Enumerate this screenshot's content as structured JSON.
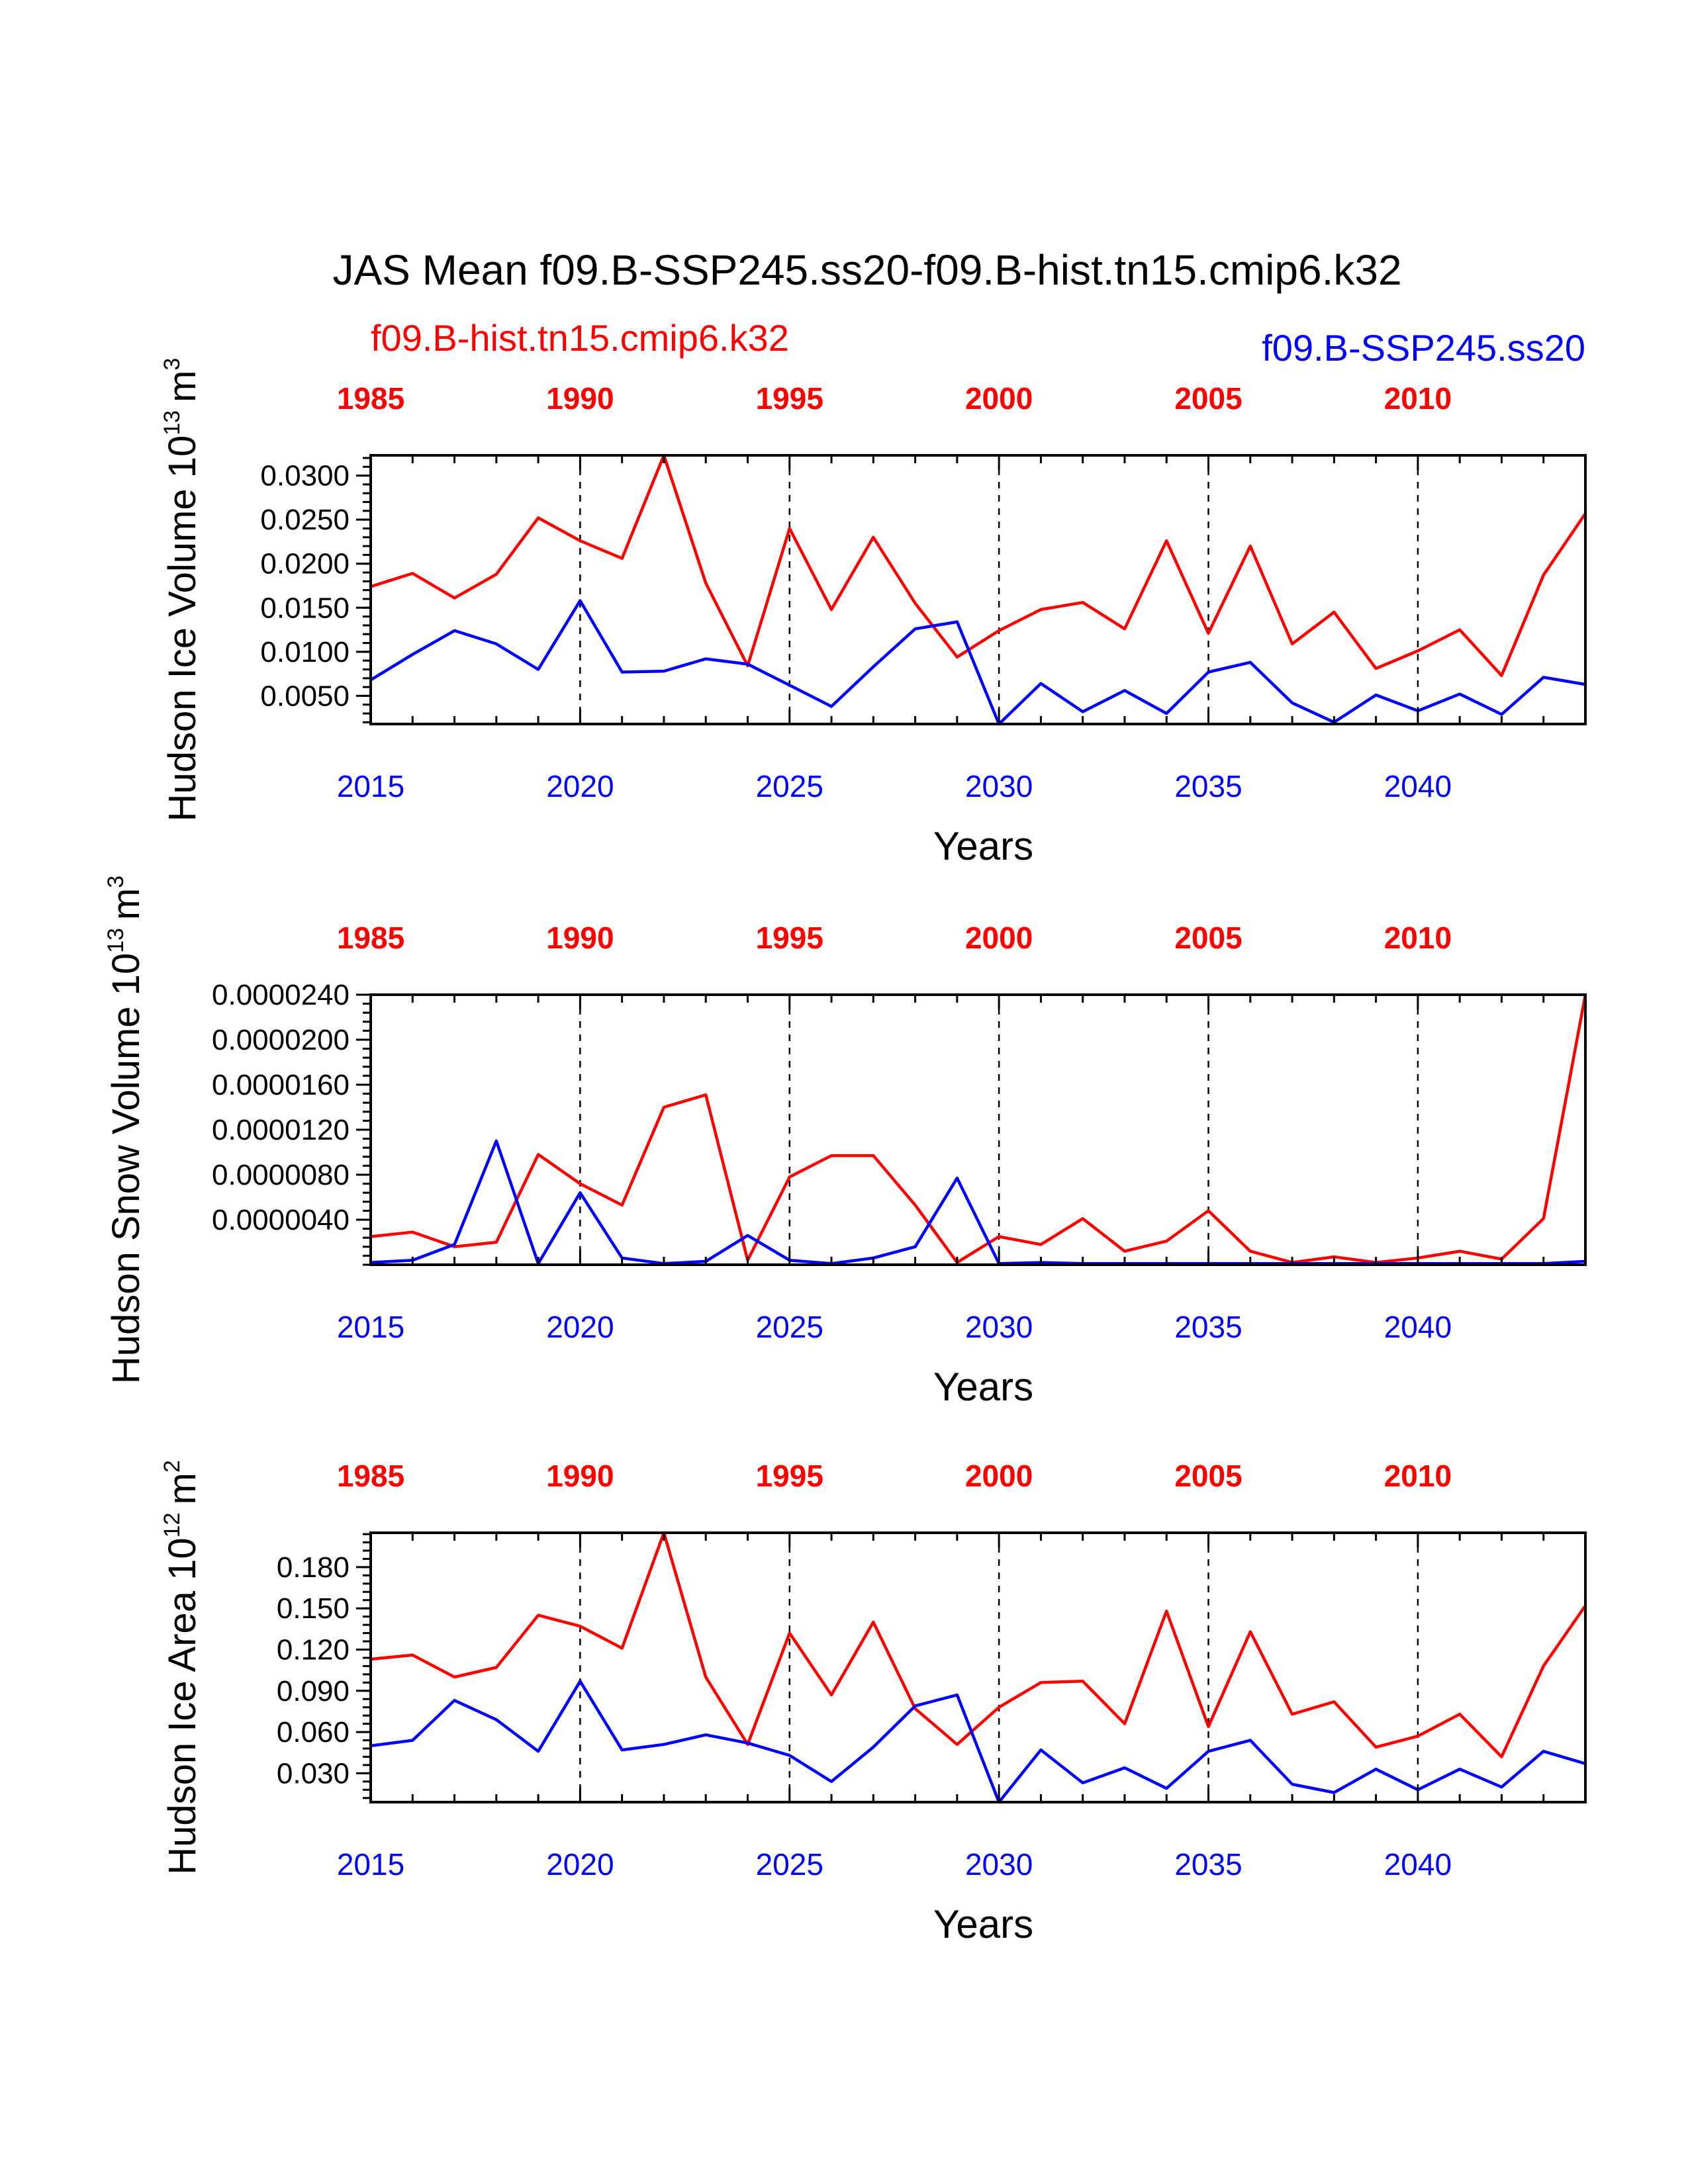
{
  "title": "JAS Mean f09.B-SSP245.ss20-f09.B-hist.tn15.cmip6.k32",
  "left_case": "f09.B-hist.tn15.cmip6.k32",
  "right_case": "f09.B-SSP245.ss20",
  "colors": {
    "hist": "#ff0000",
    "ssp": "#0000ff",
    "axes": "#000000"
  },
  "chart_data": [
    {
      "type": "line",
      "ylabel": "Hudson Ice Volume 10",
      "ylabel_sup": "13",
      "ylabel_unit": "m",
      "ylabel_unit_sup": "3",
      "xlabel": "Years",
      "x_bottom": {
        "ticks": [
          2015,
          2020,
          2025,
          2030,
          2035,
          2040
        ],
        "labels": [
          "2015",
          "2020",
          "2025",
          "2030",
          "2035",
          "2040"
        ],
        "range": [
          2015,
          2044
        ]
      },
      "x_top": {
        "ticks": [
          1985,
          1990,
          1995,
          2000,
          2005,
          2010
        ],
        "labels": [
          "1985",
          "1990",
          "1995",
          "2000",
          "2005",
          "2010"
        ],
        "range": [
          1985,
          2014
        ]
      },
      "ylim": [
        0.0018,
        0.0323
      ],
      "y_ticks": [
        0.005,
        0.01,
        0.015,
        0.02,
        0.025,
        0.03
      ],
      "y_tick_labels": [
        "0.0050",
        "0.0100",
        "0.0150",
        "0.0200",
        "0.0250",
        "0.0300"
      ],
      "y_minor_step": 0.001,
      "vertical_reference_lines": [
        2020,
        2025,
        2030,
        2035,
        2040
      ],
      "series": [
        {
          "name": "f09.B-hist.tn15.cmip6.k32",
          "color": "#ff0000",
          "x": [
            1985,
            1986,
            1987,
            1988,
            1989,
            1990,
            1991,
            1992,
            1993,
            1994,
            1995,
            1996,
            1997,
            1998,
            1999,
            2000,
            2001,
            2002,
            2003,
            2004,
            2005,
            2006,
            2007,
            2008,
            2009,
            2010,
            2011,
            2012,
            2013,
            2014
          ],
          "values": [
            0.0174,
            0.0189,
            0.0161,
            0.0188,
            0.0252,
            0.0226,
            0.0206,
            0.0323,
            0.0178,
            0.0084,
            0.024,
            0.0148,
            0.023,
            0.0155,
            0.0094,
            0.0124,
            0.0148,
            0.0156,
            0.0126,
            0.0226,
            0.0121,
            0.022,
            0.0109,
            0.0145,
            0.0081,
            0.0101,
            0.0125,
            0.0073,
            0.0187,
            0.0257
          ]
        },
        {
          "name": "f09.B-SSP245.ss20",
          "color": "#0000ff",
          "x": [
            2015,
            2016,
            2017,
            2018,
            2019,
            2020,
            2021,
            2022,
            2023,
            2024,
            2025,
            2026,
            2027,
            2028,
            2029,
            2030,
            2031,
            2032,
            2033,
            2034,
            2035,
            2036,
            2037,
            2038,
            2039,
            2040,
            2041,
            2042,
            2043,
            2044
          ],
          "values": [
            0.0068,
            0.0097,
            0.0124,
            0.0109,
            0.008,
            0.0158,
            0.0077,
            0.0078,
            0.0092,
            0.0086,
            0.0062,
            0.0038,
            0.0083,
            0.0126,
            0.0134,
            0.0018,
            0.0064,
            0.0032,
            0.0056,
            0.003,
            0.0077,
            0.0088,
            0.0042,
            0.002,
            0.0051,
            0.0033,
            0.0052,
            0.0029,
            0.0071,
            0.0063
          ]
        }
      ]
    },
    {
      "type": "line",
      "ylabel": "Hudson Snow Volume 10",
      "ylabel_sup": "13",
      "ylabel_unit": "m",
      "ylabel_unit_sup": "3",
      "xlabel": "Years",
      "x_bottom": {
        "ticks": [
          2015,
          2020,
          2025,
          2030,
          2035,
          2040
        ],
        "labels": [
          "2015",
          "2020",
          "2025",
          "2030",
          "2035",
          "2040"
        ],
        "range": [
          2015,
          2044
        ]
      },
      "x_top": {
        "ticks": [
          1985,
          1990,
          1995,
          2000,
          2005,
          2010
        ],
        "labels": [
          "1985",
          "1990",
          "1995",
          "2000",
          "2005",
          "2010"
        ],
        "range": [
          1985,
          2014
        ]
      },
      "ylim": [
        0,
        2.4e-05
      ],
      "y_ticks": [
        4e-06,
        8e-06,
        1.2e-05,
        1.6e-05,
        2e-05,
        2.4e-05
      ],
      "y_tick_labels": [
        "0.0000040",
        "0.0000080",
        "0.0000120",
        "0.0000160",
        "0.0000200",
        "0.0000240"
      ],
      "y_minor_step": 8e-07,
      "vertical_reference_lines": [
        2020,
        2025,
        2030,
        2035,
        2040
      ],
      "series": [
        {
          "name": "f09.B-hist.tn15.cmip6.k32",
          "color": "#ff0000",
          "x": [
            1985,
            1986,
            1987,
            1988,
            1989,
            1990,
            1991,
            1992,
            1993,
            1994,
            1995,
            1996,
            1997,
            1998,
            1999,
            2000,
            2001,
            2002,
            2003,
            2004,
            2005,
            2006,
            2007,
            2008,
            2009,
            2010,
            2011,
            2012,
            2013,
            2014
          ],
          "values": [
            2.5e-06,
            2.9e-06,
            1.6e-06,
            2e-06,
            9.8e-06,
            7.2e-06,
            5.3e-06,
            1.4e-05,
            1.51e-05,
            4e-07,
            7.8e-06,
            9.7e-06,
            9.7e-06,
            5.3e-06,
            2e-07,
            2.5e-06,
            1.8e-06,
            4.1e-06,
            1.2e-06,
            2.1e-06,
            4.8e-06,
            1.2e-06,
            2e-07,
            7e-07,
            2e-07,
            6e-07,
            1.2e-06,
            5e-07,
            4.1e-06,
            2.4e-05
          ]
        },
        {
          "name": "f09.B-SSP245.ss20",
          "color": "#0000ff",
          "x": [
            2015,
            2016,
            2017,
            2018,
            2019,
            2020,
            2021,
            2022,
            2023,
            2024,
            2025,
            2026,
            2027,
            2028,
            2029,
            2030,
            2031,
            2032,
            2033,
            2034,
            2035,
            2036,
            2037,
            2038,
            2039,
            2040,
            2041,
            2042,
            2043,
            2044
          ],
          "values": [
            2e-07,
            4e-07,
            1.8e-06,
            1.1e-05,
            1e-07,
            6.4e-06,
            6e-07,
            1e-07,
            3e-07,
            2.6e-06,
            4e-07,
            1e-07,
            6e-07,
            1.6e-06,
            7.7e-06,
            1e-07,
            2e-07,
            1e-07,
            1e-07,
            1e-07,
            1e-07,
            1e-07,
            1e-07,
            1e-07,
            1e-07,
            1e-07,
            1e-07,
            1e-07,
            1e-07,
            3e-07
          ]
        }
      ]
    },
    {
      "type": "line",
      "ylabel": "Hudson Ice Area 10",
      "ylabel_sup": "12",
      "ylabel_unit": "m",
      "ylabel_unit_sup": "2",
      "xlabel": "Years",
      "x_bottom": {
        "ticks": [
          2015,
          2020,
          2025,
          2030,
          2035,
          2040
        ],
        "labels": [
          "2015",
          "2020",
          "2025",
          "2030",
          "2035",
          "2040"
        ],
        "range": [
          2015,
          2044
        ]
      },
      "x_top": {
        "ticks": [
          1985,
          1990,
          1995,
          2000,
          2005,
          2010
        ],
        "labels": [
          "1985",
          "1990",
          "1995",
          "2000",
          "2005",
          "2010"
        ],
        "range": [
          1985,
          2014
        ]
      },
      "ylim": [
        0.009,
        0.205
      ],
      "y_ticks": [
        0.03,
        0.06,
        0.09,
        0.12,
        0.15,
        0.18
      ],
      "y_tick_labels": [
        "0.030",
        "0.060",
        "0.090",
        "0.120",
        "0.150",
        "0.180"
      ],
      "y_minor_step": 0.006,
      "vertical_reference_lines": [
        2020,
        2025,
        2030,
        2035,
        2040
      ],
      "series": [
        {
          "name": "f09.B-hist.tn15.cmip6.k32",
          "color": "#ff0000",
          "x": [
            1985,
            1986,
            1987,
            1988,
            1989,
            1990,
            1991,
            1992,
            1993,
            1994,
            1995,
            1996,
            1997,
            1998,
            1999,
            2000,
            2001,
            2002,
            2003,
            2004,
            2005,
            2006,
            2007,
            2008,
            2009,
            2010,
            2011,
            2012,
            2013,
            2014
          ],
          "values": [
            0.113,
            0.116,
            0.1,
            0.107,
            0.145,
            0.137,
            0.121,
            0.205,
            0.1,
            0.051,
            0.132,
            0.087,
            0.14,
            0.077,
            0.051,
            0.078,
            0.096,
            0.097,
            0.066,
            0.148,
            0.064,
            0.133,
            0.073,
            0.082,
            0.049,
            0.057,
            0.073,
            0.042,
            0.108,
            0.152
          ]
        },
        {
          "name": "f09.B-SSP245.ss20",
          "color": "#0000ff",
          "x": [
            2015,
            2016,
            2017,
            2018,
            2019,
            2020,
            2021,
            2022,
            2023,
            2024,
            2025,
            2026,
            2027,
            2028,
            2029,
            2030,
            2031,
            2032,
            2033,
            2034,
            2035,
            2036,
            2037,
            2038,
            2039,
            2040,
            2041,
            2042,
            2043,
            2044
          ],
          "values": [
            0.05,
            0.054,
            0.083,
            0.069,
            0.046,
            0.097,
            0.047,
            0.051,
            0.058,
            0.052,
            0.043,
            0.024,
            0.049,
            0.079,
            0.087,
            0.009,
            0.047,
            0.023,
            0.034,
            0.019,
            0.046,
            0.054,
            0.022,
            0.016,
            0.033,
            0.018,
            0.033,
            0.02,
            0.046,
            0.037
          ]
        }
      ]
    }
  ]
}
